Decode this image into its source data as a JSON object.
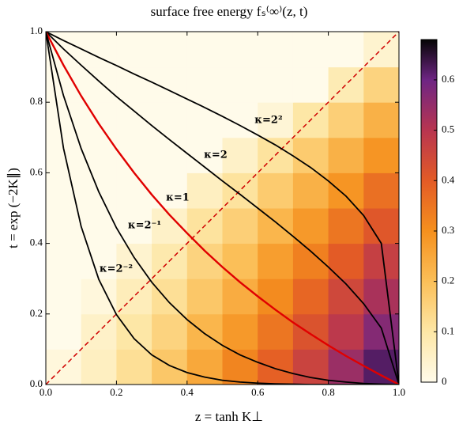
{
  "chart_data": {
    "type": "heatmap",
    "title": "surface free energy fₛ⁽∞⁾(z, t)",
    "x_label": "z = tanh K⊥",
    "y_label": "t = exp (−2K∥)",
    "xlim": [
      0,
      1
    ],
    "ylim": [
      0,
      1
    ],
    "xticks": [
      {
        "value": 0,
        "label": "0.0"
      },
      {
        "value": 0.2,
        "label": "0.2"
      },
      {
        "value": 0.4,
        "label": "0.4"
      },
      {
        "value": 0.6,
        "label": "0.6"
      },
      {
        "value": 0.8,
        "label": "0.8"
      },
      {
        "value": 1,
        "label": "1.0"
      }
    ],
    "yticks": [
      {
        "value": 0,
        "label": "0.0"
      },
      {
        "value": 0.2,
        "label": "0.2"
      },
      {
        "value": 0.4,
        "label": "0.4"
      },
      {
        "value": 0.6,
        "label": "0.6"
      },
      {
        "value": 0.8,
        "label": "0.8"
      },
      {
        "value": 1,
        "label": "1.0"
      }
    ],
    "clim": [
      0,
      0.68
    ],
    "cticks": [
      0,
      0.1,
      0.2,
      0.3,
      0.4,
      0.5,
      0.6
    ],
    "colorscale": [
      [
        0,
        "#fffbea"
      ],
      [
        0.1,
        "#fde7a6"
      ],
      [
        0.2,
        "#fbbf58"
      ],
      [
        0.3,
        "#f5901e"
      ],
      [
        0.4,
        "#e35b26"
      ],
      [
        0.5,
        "#b83550"
      ],
      [
        0.6,
        "#6e2584"
      ],
      [
        0.68,
        "#050505"
      ]
    ],
    "heatmap": {
      "z": [
        0.05,
        0.15,
        0.25,
        0.35,
        0.45,
        0.55,
        0.65,
        0.75,
        0.85,
        0.95
      ],
      "t": [
        0.05,
        0.15,
        0.25,
        0.35,
        0.45,
        0.55,
        0.65,
        0.75,
        0.85,
        0.95
      ],
      "values": [
        [
          0.02,
          0.06,
          0.12,
          0.18,
          0.25,
          0.32,
          0.39,
          0.46,
          0.54,
          0.62
        ],
        [
          0,
          0.05,
          0.1,
          0.15,
          0.22,
          0.28,
          0.35,
          0.42,
          0.49,
          0.57
        ],
        [
          0,
          0.02,
          0.07,
          0.12,
          0.18,
          0.24,
          0.31,
          0.38,
          0.45,
          0.52
        ],
        [
          0,
          0,
          0.04,
          0.09,
          0.15,
          0.2,
          0.27,
          0.33,
          0.4,
          0.47
        ],
        [
          0,
          0,
          0,
          0.05,
          0.11,
          0.16,
          0.22,
          0.28,
          0.35,
          0.41
        ],
        [
          0,
          0,
          0,
          0,
          0.06,
          0.11,
          0.17,
          0.23,
          0.29,
          0.36
        ],
        [
          0,
          0,
          0,
          0,
          0,
          0.05,
          0.11,
          0.17,
          0.23,
          0.29
        ],
        [
          0,
          0,
          0,
          0,
          0,
          0,
          0.03,
          0.1,
          0.16,
          0.23
        ],
        [
          0,
          0,
          0,
          0,
          0,
          0,
          0,
          0,
          0.08,
          0.15
        ],
        [
          0,
          0,
          0,
          0,
          0,
          0,
          0,
          0,
          0,
          0.04
        ]
      ]
    },
    "x": [
      0,
      0.05,
      0.1,
      0.15,
      0.2,
      0.25,
      0.3,
      0.35,
      0.4,
      0.45,
      0.5,
      0.55,
      0.6,
      0.65,
      0.7,
      0.75,
      0.8,
      0.85,
      0.9,
      0.95,
      1
    ],
    "series": [
      {
        "name": "κ=2²",
        "color": "#000000",
        "values": [
          1,
          0.975,
          0.951,
          0.927,
          0.904,
          0.88,
          0.857,
          0.833,
          0.809,
          0.785,
          0.76,
          0.734,
          0.707,
          0.679,
          0.648,
          0.615,
          0.577,
          0.534,
          0.479,
          0.4,
          0
        ]
      },
      {
        "name": "κ=2",
        "color": "#000000",
        "values": [
          1,
          0.951,
          0.905,
          0.86,
          0.816,
          0.775,
          0.734,
          0.694,
          0.655,
          0.616,
          0.577,
          0.539,
          0.5,
          0.461,
          0.42,
          0.378,
          0.333,
          0.285,
          0.229,
          0.16,
          0
        ]
      },
      {
        "name": "κ=1",
        "color": "#e00000",
        "values": [
          1,
          0.905,
          0.818,
          0.739,
          0.667,
          0.6,
          0.538,
          0.481,
          0.429,
          0.379,
          0.333,
          0.29,
          0.25,
          0.212,
          0.176,
          0.143,
          0.111,
          0.081,
          0.053,
          0.026,
          0
        ]
      },
      {
        "name": "κ=2⁻¹",
        "color": "#000000",
        "values": [
          1,
          0.819,
          0.669,
          0.546,
          0.444,
          0.36,
          0.29,
          0.232,
          0.184,
          0.144,
          0.111,
          0.084,
          0.063,
          0.045,
          0.031,
          0.02,
          0.012,
          0.007,
          0.003,
          0.001,
          0
        ]
      },
      {
        "name": "κ=2⁻²",
        "color": "#000000",
        "values": [
          1,
          0.67,
          0.448,
          0.298,
          0.198,
          0.13,
          0.084,
          0.054,
          0.034,
          0.021,
          0.012,
          0.007,
          0.004,
          0.002,
          0.001,
          0,
          0,
          0,
          0,
          0,
          0
        ]
      }
    ],
    "diagonal": {
      "x": [
        0,
        1
      ],
      "values": [
        0,
        1
      ],
      "color": "#d00000",
      "dashed": true
    }
  }
}
